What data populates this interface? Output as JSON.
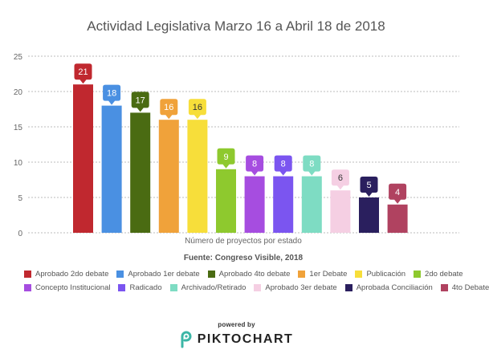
{
  "colors": {
    "title": "#555555",
    "axis_text": "#666666",
    "grid": "#bbbbbb"
  },
  "chart_data": {
    "type": "bar",
    "title": "Actividad Legislativa Marzo 16 a Abril 18 de 2018",
    "xlabel": "Número de proyectos por estado",
    "ylabel": "",
    "ylim": [
      0,
      25
    ],
    "yticks": [
      "0",
      "5",
      "10",
      "15",
      "20",
      "25"
    ],
    "grid": true,
    "legend_position": "bottom",
    "source_note": "Fuente: Congreso Visible, 2018",
    "series": [
      {
        "name": "Aprobado 2do debate",
        "value": 21,
        "color": "#c0282f"
      },
      {
        "name": "Aprobado 1er debate",
        "value": 18,
        "color": "#4a90e2"
      },
      {
        "name": "Aprobado 4to debate",
        "value": 17,
        "color": "#4a6b12"
      },
      {
        "name": "1er Debate",
        "value": 16,
        "color": "#f0a23a"
      },
      {
        "name": "Publicación",
        "value": 16,
        "color": "#f7de3a"
      },
      {
        "name": "2do debate",
        "value": 9,
        "color": "#8ec92e"
      },
      {
        "name": "Concepto Institucional",
        "value": 8,
        "color": "#a64de0"
      },
      {
        "name": "Radicado",
        "value": 8,
        "color": "#7b55f0"
      },
      {
        "name": "Archivado/Retirado",
        "value": 8,
        "color": "#7edcc3"
      },
      {
        "name": "Aprobado 3er debate",
        "value": 6,
        "color": "#f5cfe3"
      },
      {
        "name": "Aprobada Conciliación",
        "value": 5,
        "color": "#2a1f5e"
      },
      {
        "name": "4to Debate",
        "value": 4,
        "color": "#b04260"
      }
    ]
  },
  "legend_rows": [
    [
      0,
      1,
      2,
      3,
      4,
      5
    ],
    [
      6,
      7,
      8,
      9,
      10,
      11
    ]
  ],
  "footer": {
    "powered_by": "powered by",
    "brand": "PIKTOCHART",
    "logo_icon": "piktochart-logo-icon"
  }
}
